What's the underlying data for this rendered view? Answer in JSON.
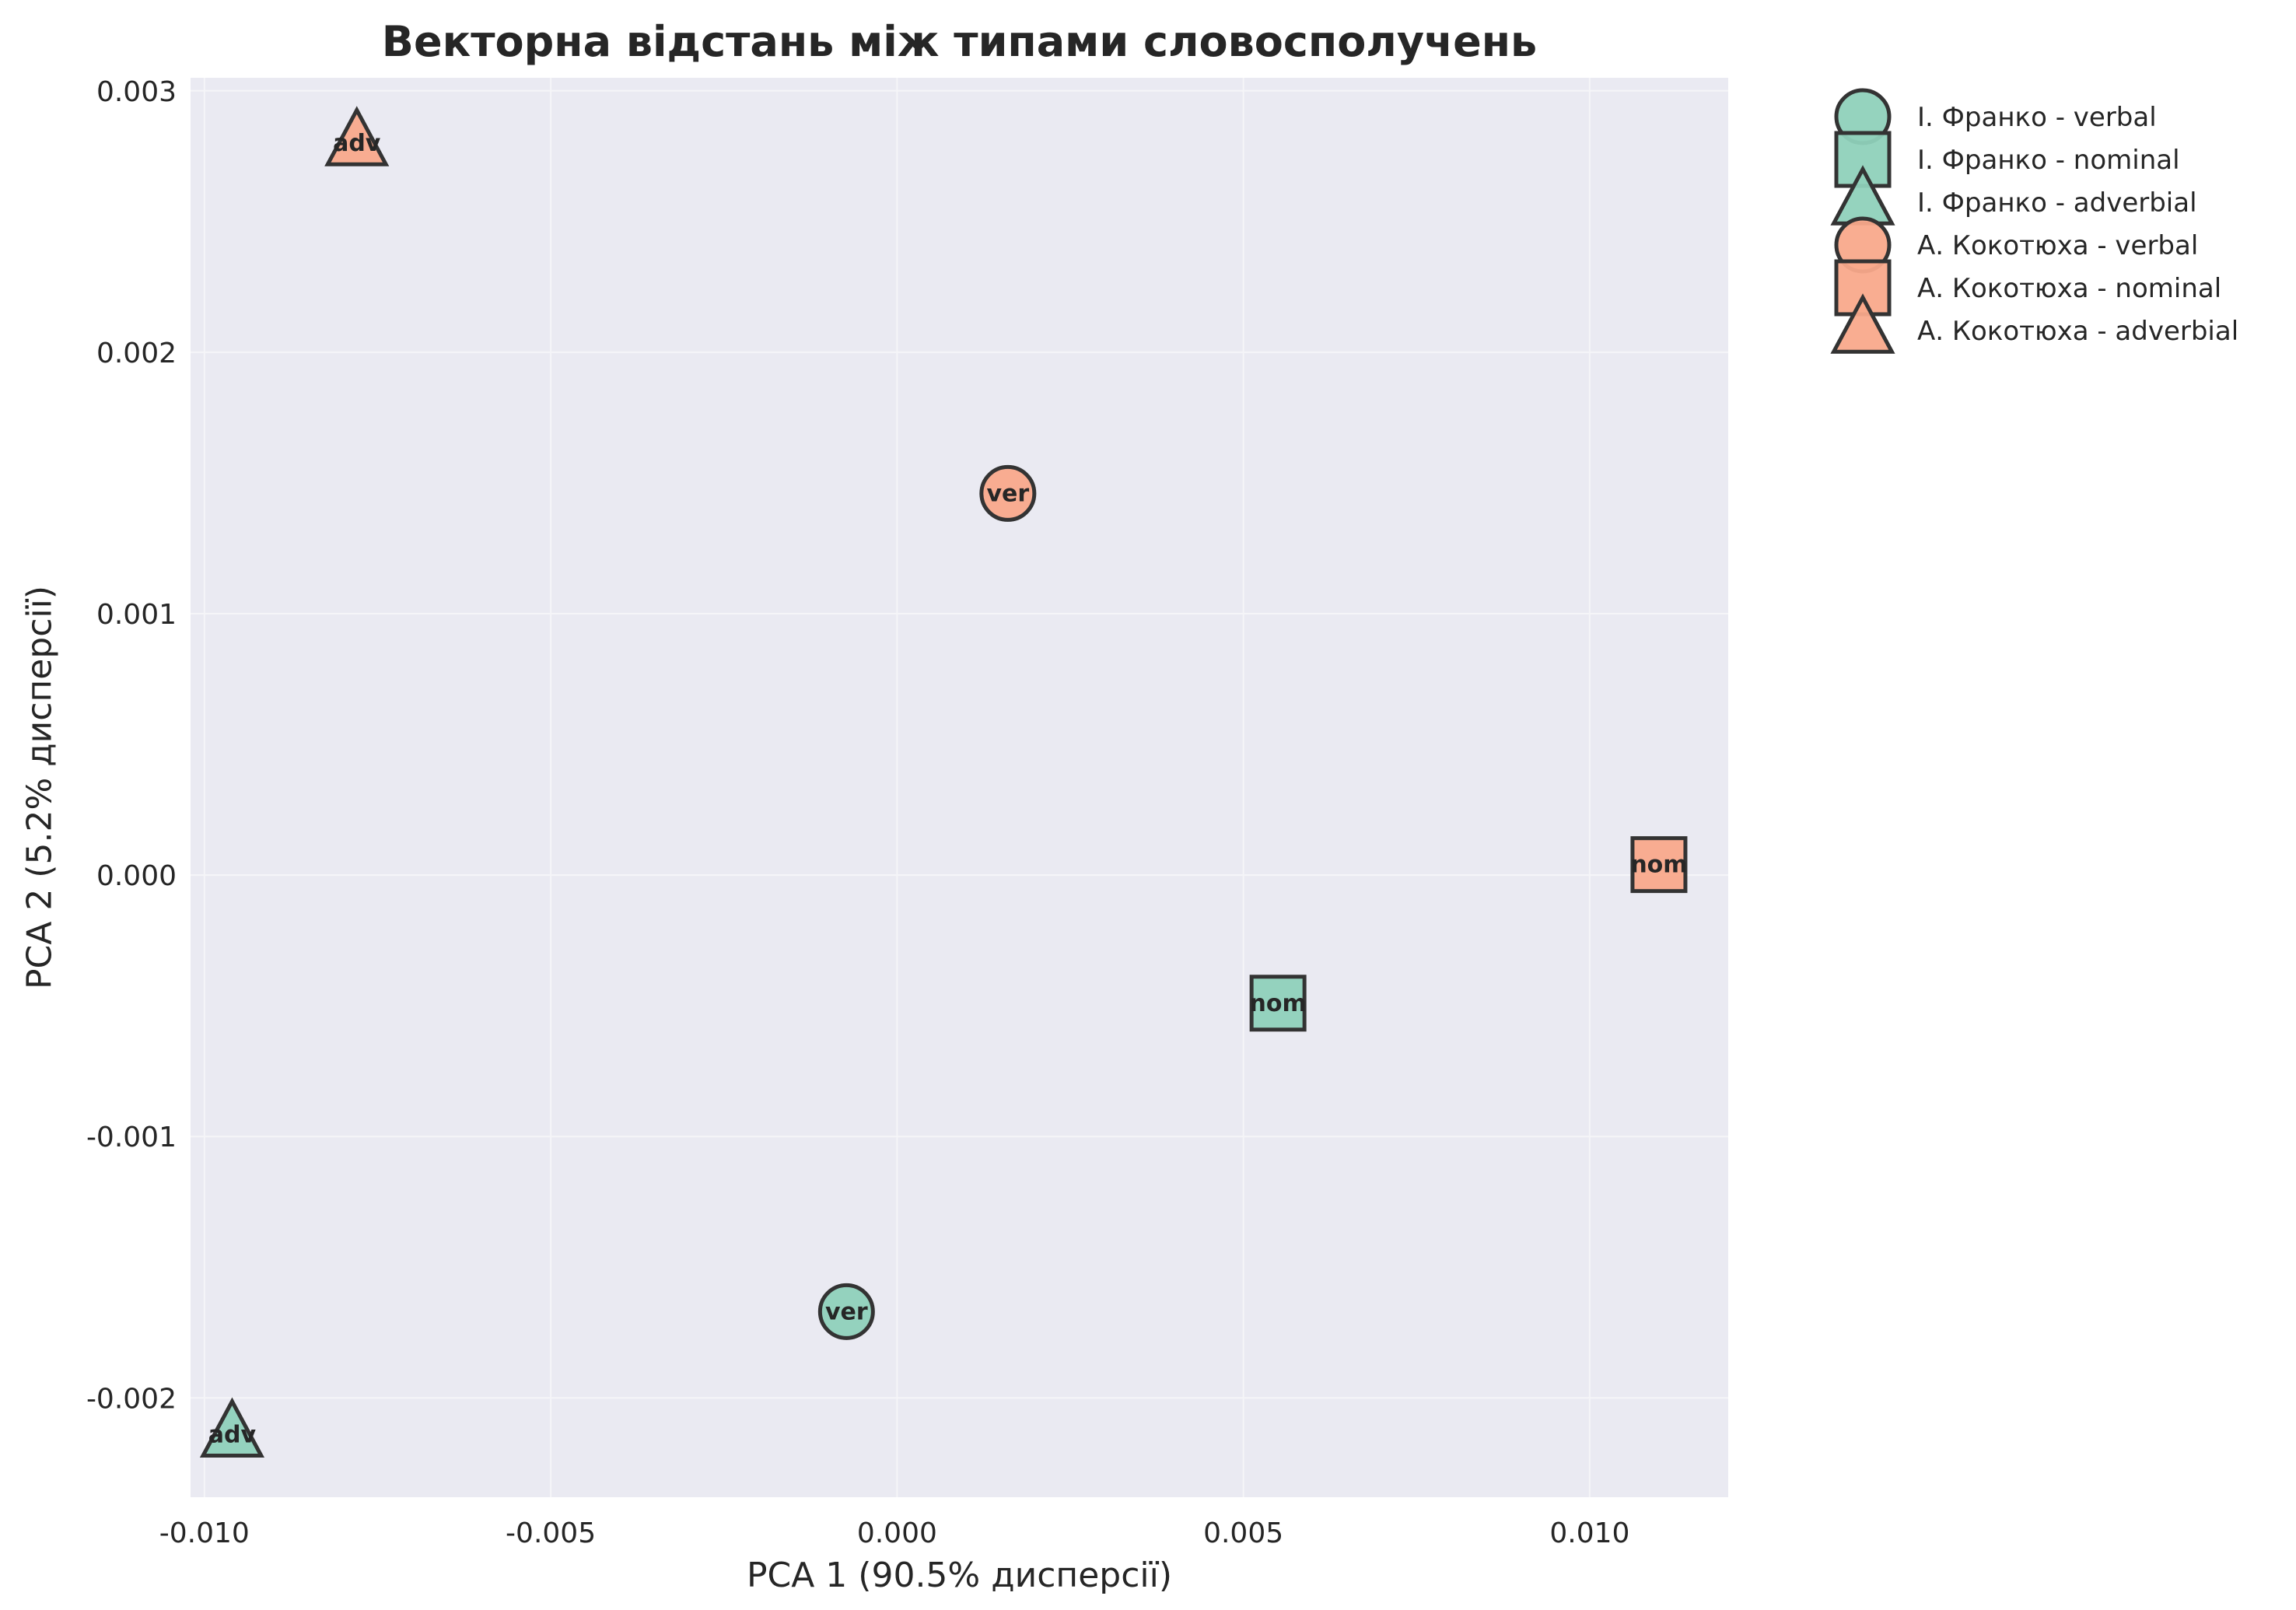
{
  "colors": {
    "plot_background": "#EAEAF2",
    "grid": "#F5F5F8",
    "marker_edge": "#333333",
    "franko": "#8FD1BB",
    "kokotyukha": "#F9A98B"
  },
  "chart_data": {
    "type": "scatter",
    "title": "Векторна відстань між типами словосполучень",
    "xlabel": "PCA 1 (90.5% дисперсії)",
    "ylabel": "PCA 2 (5.2% дисперсії)",
    "xlim": [
      -0.0102,
      0.012
    ],
    "ylim": [
      -0.00238,
      0.00305
    ],
    "xticks": [
      -0.01,
      -0.005,
      0.0,
      0.005,
      0.01
    ],
    "xtick_labels": [
      "-0.010",
      "-0.005",
      "0.000",
      "0.005",
      "0.010"
    ],
    "yticks": [
      -0.002,
      -0.001,
      0.0,
      0.001,
      0.002,
      0.003
    ],
    "ytick_labels": [
      "-0.002",
      "-0.001",
      "0.000",
      "0.001",
      "0.002",
      "0.003"
    ],
    "grid": true,
    "legend_position": "outside right, top",
    "series": [
      {
        "name": "I. Франко - verbal",
        "color": "franko",
        "marker": "circle",
        "points": [
          {
            "x": -0.00073,
            "y": -0.00167,
            "label": "ver"
          }
        ]
      },
      {
        "name": "I. Франко - nominal",
        "color": "franko",
        "marker": "square",
        "points": [
          {
            "x": 0.0055,
            "y": -0.00049,
            "label": "nom"
          }
        ]
      },
      {
        "name": "I. Франко - adverbial",
        "color": "franko",
        "marker": "triangle",
        "points": [
          {
            "x": -0.0096,
            "y": -0.00214,
            "label": "adv"
          }
        ]
      },
      {
        "name": "А. Кокотюха - verbal",
        "color": "kokotyukha",
        "marker": "circle",
        "points": [
          {
            "x": 0.0016,
            "y": 0.00146,
            "label": "ver"
          }
        ]
      },
      {
        "name": "А. Кокотюха - nominal",
        "color": "kokotyukha",
        "marker": "square",
        "points": [
          {
            "x": 0.011,
            "y": 4e-05,
            "label": "nom"
          }
        ]
      },
      {
        "name": "А. Кокотюха - adverbial",
        "color": "kokotyukha",
        "marker": "triangle",
        "points": [
          {
            "x": -0.0078,
            "y": 0.0028,
            "label": "adv"
          }
        ]
      }
    ]
  }
}
